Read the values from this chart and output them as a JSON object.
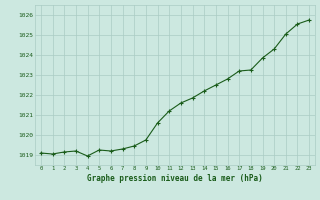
{
  "x": [
    0,
    1,
    2,
    3,
    4,
    5,
    6,
    7,
    8,
    9,
    10,
    11,
    12,
    13,
    14,
    15,
    16,
    17,
    18,
    19,
    20,
    21,
    22,
    23
  ],
  "y": [
    1019.1,
    1019.05,
    1019.15,
    1019.2,
    1018.95,
    1019.25,
    1019.2,
    1019.3,
    1019.45,
    1019.75,
    1020.6,
    1021.2,
    1021.6,
    1021.85,
    1022.2,
    1022.5,
    1022.8,
    1023.2,
    1023.25,
    1023.85,
    1024.3,
    1025.05,
    1025.55,
    1025.75
  ],
  "line_color": "#1a5c1a",
  "marker_color": "#1a5c1a",
  "bg_color": "#cce8e0",
  "grid_color": "#aaccc4",
  "text_color": "#1a5c1a",
  "xlabel": "Graphe pression niveau de la mer (hPa)",
  "ylim": [
    1018.5,
    1026.5
  ],
  "xlim": [
    -0.5,
    23.5
  ],
  "yticks": [
    1019,
    1020,
    1021,
    1022,
    1023,
    1024,
    1025,
    1026
  ],
  "xticks": [
    0,
    1,
    2,
    3,
    4,
    5,
    6,
    7,
    8,
    9,
    10,
    11,
    12,
    13,
    14,
    15,
    16,
    17,
    18,
    19,
    20,
    21,
    22,
    23
  ]
}
